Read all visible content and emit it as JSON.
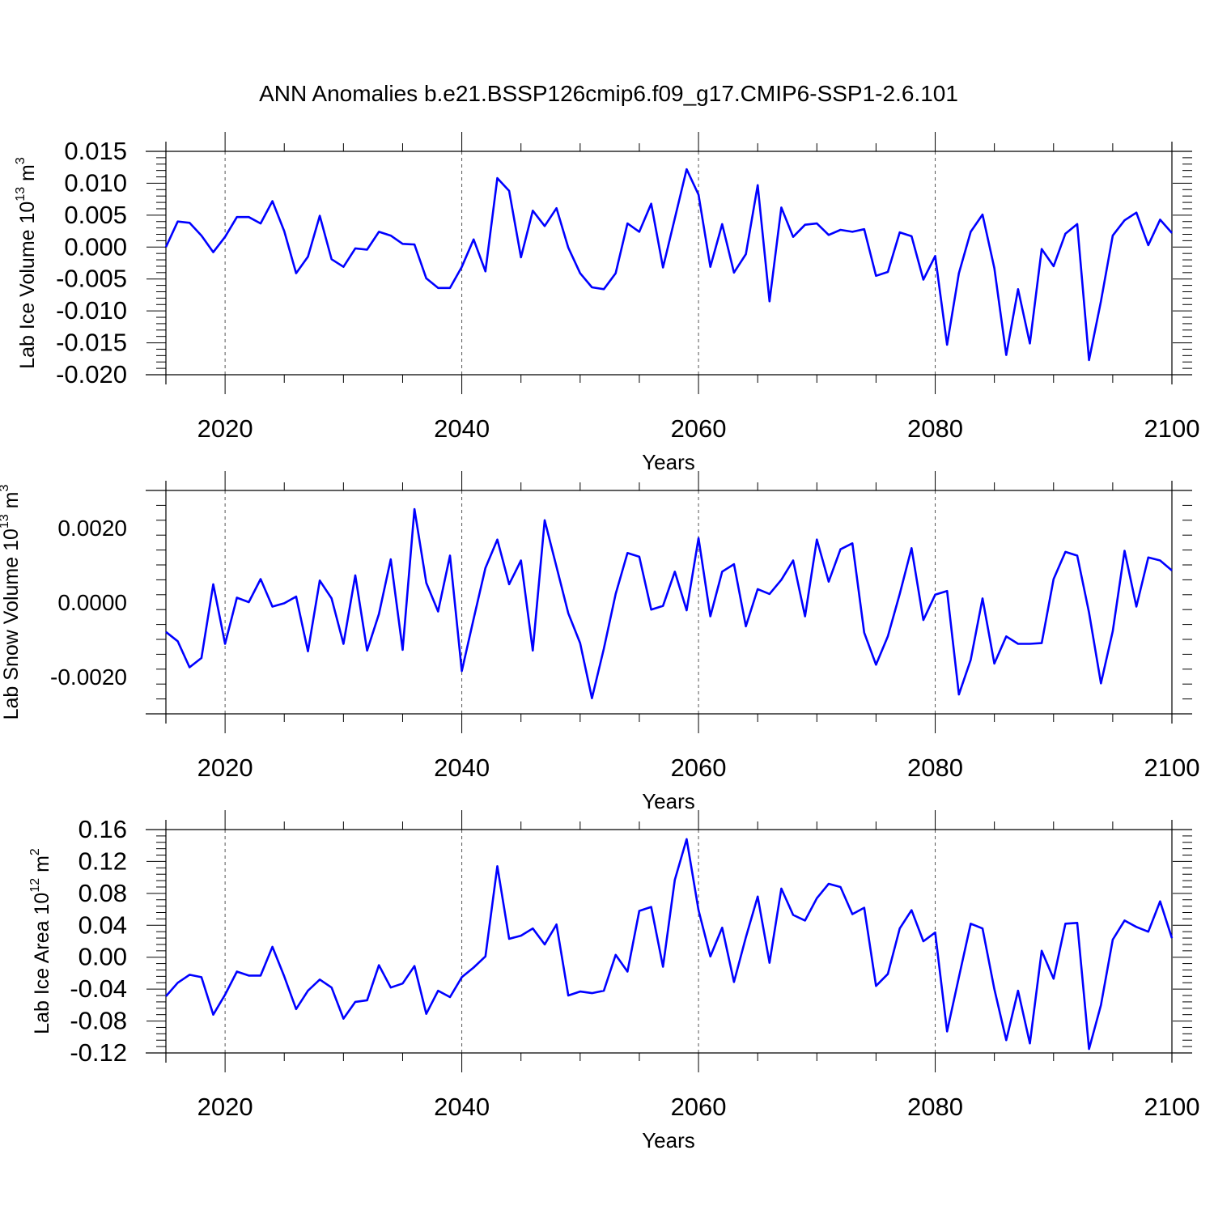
{
  "title": "ANN Anomalies b.e21.BSSP126cmip6.f09_g17.CMIP6-SSP1-2.6.101",
  "colors": {
    "line": "#0000ff",
    "axis": "#000000",
    "grid": "#555555"
  },
  "chart_data": [
    {
      "type": "line",
      "ylabel": "Lab Ice Volume",
      "ylabel_unit_base": "10",
      "ylabel_unit_exp": "13",
      "ylabel_unit_sym": "m",
      "ylabel_unit_pow": "3",
      "xlabel": "Years",
      "xlim": [
        2015,
        2100
      ],
      "ylim": [
        -0.02,
        0.015
      ],
      "xticks": [
        2020,
        2040,
        2060,
        2080,
        2100
      ],
      "xtick_labels": [
        "2020",
        "2040",
        "2060",
        "2080",
        "2100"
      ],
      "yticks": [
        0.015,
        0.01,
        0.005,
        0,
        -0.005,
        -0.01,
        -0.015,
        -0.02
      ],
      "ytick_labels": [
        "0.015",
        "0.010",
        "0.005",
        "0.000",
        "-0.005",
        "-0.010",
        "-0.015",
        "-0.020"
      ],
      "x": [
        2015,
        2016,
        2017,
        2018,
        2019,
        2020,
        2021,
        2022,
        2023,
        2024,
        2025,
        2026,
        2027,
        2028,
        2029,
        2030,
        2031,
        2032,
        2033,
        2034,
        2035,
        2036,
        2037,
        2038,
        2039,
        2040,
        2041,
        2042,
        2043,
        2044,
        2045,
        2046,
        2047,
        2048,
        2049,
        2050,
        2051,
        2052,
        2053,
        2054,
        2055,
        2056,
        2057,
        2058,
        2059,
        2060,
        2061,
        2062,
        2063,
        2064,
        2065,
        2066,
        2067,
        2068,
        2069,
        2070,
        2071,
        2072,
        2073,
        2074,
        2075,
        2076,
        2077,
        2078,
        2079,
        2080,
        2081,
        2082,
        2083,
        2084,
        2085,
        2086,
        2087,
        2088,
        2089,
        2090,
        2091,
        2092,
        2093,
        2094,
        2095,
        2096,
        2097,
        2098,
        2099,
        2100
      ],
      "y": [
        0.0,
        0.004,
        0.0038,
        0.0018,
        -0.0008,
        0.0016,
        0.0047,
        0.0047,
        0.0037,
        0.0072,
        0.0025,
        -0.0041,
        -0.0015,
        0.0049,
        -0.0019,
        -0.0031,
        -0.0002,
        -0.0004,
        0.0024,
        0.0018,
        0.0005,
        0.0004,
        -0.0049,
        -0.0064,
        -0.0064,
        -0.0031,
        0.0012,
        -0.0038,
        0.0108,
        0.0088,
        -0.0016,
        0.0057,
        0.0033,
        0.0061,
        -0.0001,
        -0.0041,
        -0.0063,
        -0.0066,
        -0.0041,
        0.0037,
        0.0024,
        0.0068,
        -0.0032,
        0.0045,
        0.0122,
        0.0082,
        -0.0031,
        0.0036,
        -0.004,
        -0.0011,
        0.0097,
        -0.0085,
        0.0062,
        0.0016,
        0.0035,
        0.0037,
        0.0019,
        0.0027,
        0.0024,
        0.0028,
        -0.0045,
        -0.0039,
        0.0023,
        0.0017,
        -0.0051,
        -0.0014,
        -0.0153,
        -0.0041,
        0.0024,
        0.0051,
        -0.0033,
        -0.0169,
        -0.0066,
        -0.0151,
        -0.0003,
        -0.003,
        0.0021,
        0.0036,
        -0.0177,
        -0.0085,
        0.0018,
        0.0042,
        0.0054,
        0.0003,
        0.0043,
        0.0022
      ]
    },
    {
      "type": "line",
      "ylabel": "Lab Snow Volume",
      "ylabel_unit_base": "10",
      "ylabel_unit_exp": "13",
      "ylabel_unit_sym": "m",
      "ylabel_unit_pow": "3",
      "xlabel": "Years",
      "xlim": [
        2015,
        2100
      ],
      "ylim": [
        -0.003,
        0.003
      ],
      "xticks": [
        2020,
        2040,
        2060,
        2080,
        2100
      ],
      "xtick_labels": [
        "2020",
        "2040",
        "2060",
        "2080",
        "2100"
      ],
      "yticks": [
        0.002,
        0,
        -0.002
      ],
      "ytick_labels": [
        "0.0020",
        "0.0000",
        "-0.0020"
      ],
      "x": [
        2015,
        2016,
        2017,
        2018,
        2019,
        2020,
        2021,
        2022,
        2023,
        2024,
        2025,
        2026,
        2027,
        2028,
        2029,
        2030,
        2031,
        2032,
        2033,
        2034,
        2035,
        2036,
        2037,
        2038,
        2039,
        2040,
        2041,
        2042,
        2043,
        2044,
        2045,
        2046,
        2047,
        2048,
        2049,
        2050,
        2051,
        2052,
        2053,
        2054,
        2055,
        2056,
        2057,
        2058,
        2059,
        2060,
        2061,
        2062,
        2063,
        2064,
        2065,
        2066,
        2067,
        2068,
        2069,
        2070,
        2071,
        2072,
        2073,
        2074,
        2075,
        2076,
        2077,
        2078,
        2079,
        2080,
        2081,
        2082,
        2083,
        2084,
        2085,
        2086,
        2087,
        2088,
        2089,
        2090,
        2091,
        2092,
        2093,
        2094,
        2095,
        2096,
        2097,
        2098,
        2099,
        2100
      ],
      "y": [
        -0.0008,
        -0.00105,
        -0.00175,
        -0.0015,
        0.00048,
        -0.00112,
        0.00012,
        0.0,
        0.00062,
        -0.00012,
        -3e-05,
        0.00015,
        -0.00132,
        0.00058,
        0.0001,
        -0.00112,
        0.00072,
        -0.0013,
        -0.00032,
        0.00115,
        -0.00128,
        0.0025,
        0.00052,
        -0.00025,
        0.00125,
        -0.00185,
        -0.00045,
        0.00092,
        0.00168,
        0.00048,
        0.00112,
        -0.0013,
        0.0022,
        0.00095,
        -0.0003,
        -0.0011,
        -0.00258,
        -0.00125,
        0.00022,
        0.00132,
        0.00122,
        -0.0002,
        -0.0001,
        0.00082,
        -0.00022,
        0.00172,
        -0.00038,
        0.00082,
        0.00102,
        -0.00065,
        0.00035,
        0.00022,
        0.0006,
        0.00112,
        -0.00038,
        0.00168,
        0.00055,
        0.00142,
        0.00158,
        -0.00082,
        -0.00168,
        -0.00092,
        0.00022,
        0.00145,
        -0.00048,
        0.0002,
        0.0003,
        -0.00248,
        -0.00155,
        0.0001,
        -0.00165,
        -0.00092,
        -0.00112,
        -0.00112,
        -0.0011,
        0.00062,
        0.00135,
        0.00125,
        -0.00028,
        -0.00218,
        -0.00078,
        0.00138,
        -0.00012,
        0.0012,
        0.00112,
        0.00085
      ]
    },
    {
      "type": "line",
      "ylabel": "Lab Ice Area",
      "ylabel_unit_base": "10",
      "ylabel_unit_exp": "12",
      "ylabel_unit_sym": "m",
      "ylabel_unit_pow": "2",
      "xlabel": "Years",
      "xlim": [
        2015,
        2100
      ],
      "ylim": [
        -0.12,
        0.16
      ],
      "xticks": [
        2020,
        2040,
        2060,
        2080,
        2100
      ],
      "xtick_labels": [
        "2020",
        "2040",
        "2060",
        "2080",
        "2100"
      ],
      "yticks": [
        0.16,
        0.12,
        0.08,
        0.04,
        0,
        -0.04,
        -0.08,
        -0.12
      ],
      "ytick_labels": [
        "0.16",
        "0.12",
        "0.08",
        "0.04",
        "0.00",
        "-0.04",
        "-0.08",
        "-0.12"
      ],
      "x": [
        2015,
        2016,
        2017,
        2018,
        2019,
        2020,
        2021,
        2022,
        2023,
        2024,
        2025,
        2026,
        2027,
        2028,
        2029,
        2030,
        2031,
        2032,
        2033,
        2034,
        2035,
        2036,
        2037,
        2038,
        2039,
        2040,
        2041,
        2042,
        2043,
        2044,
        2045,
        2046,
        2047,
        2048,
        2049,
        2050,
        2051,
        2052,
        2053,
        2054,
        2055,
        2056,
        2057,
        2058,
        2059,
        2060,
        2061,
        2062,
        2063,
        2064,
        2065,
        2066,
        2067,
        2068,
        2069,
        2070,
        2071,
        2072,
        2073,
        2074,
        2075,
        2076,
        2077,
        2078,
        2079,
        2080,
        2081,
        2082,
        2083,
        2084,
        2085,
        2086,
        2087,
        2088,
        2089,
        2090,
        2091,
        2092,
        2093,
        2094,
        2095,
        2096,
        2097,
        2098,
        2099,
        2100
      ],
      "y": [
        -0.049,
        -0.032,
        -0.022,
        -0.025,
        -0.072,
        -0.047,
        -0.018,
        -0.023,
        -0.023,
        0.013,
        -0.024,
        -0.065,
        -0.042,
        -0.028,
        -0.038,
        -0.077,
        -0.056,
        -0.054,
        -0.01,
        -0.038,
        -0.033,
        -0.011,
        -0.071,
        -0.042,
        -0.05,
        -0.025,
        -0.013,
        0.001,
        0.114,
        0.023,
        0.027,
        0.036,
        0.016,
        0.041,
        -0.048,
        -0.043,
        -0.045,
        -0.042,
        0.003,
        -0.018,
        0.058,
        0.063,
        -0.012,
        0.097,
        0.148,
        0.059,
        0.001,
        0.037,
        -0.031,
        0.025,
        0.076,
        -0.007,
        0.086,
        0.053,
        0.046,
        0.074,
        0.092,
        0.088,
        0.054,
        0.062,
        -0.036,
        -0.021,
        0.036,
        0.059,
        0.02,
        0.031,
        -0.093,
        -0.025,
        0.042,
        0.036,
        -0.04,
        -0.104,
        -0.042,
        -0.108,
        0.008,
        -0.027,
        0.042,
        0.043,
        -0.115,
        -0.06,
        0.022,
        0.046,
        0.038,
        0.032,
        0.07,
        0.024
      ]
    }
  ]
}
